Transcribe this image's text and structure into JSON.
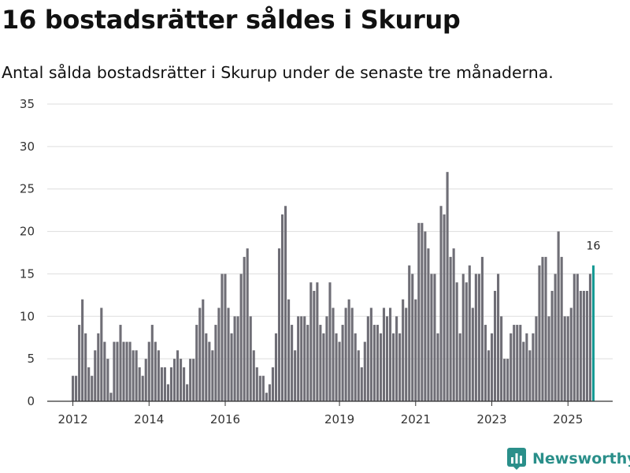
{
  "header": {
    "title": "16 bostadsrätter såldes i Skurup",
    "subtitle": "Antal sålda bostadsrätter i Skurup under de senaste tre månaderna."
  },
  "logo": {
    "text": "Newsworthy",
    "icon": "bar-chart-icon"
  },
  "colors": {
    "bar": "#6f6e76",
    "highlight": "#179a94",
    "grid": "#dddddd",
    "axis": "#333333"
  },
  "chart_data": {
    "type": "bar",
    "title": "16 bostadsrätter såldes i Skurup",
    "subtitle": "Antal sålda bostadsrätter i Skurup under de senaste tre månaderna.",
    "xlabel": "",
    "ylabel": "",
    "ylim": [
      0,
      35
    ],
    "yticks": [
      0,
      5,
      10,
      15,
      20,
      25,
      30,
      35
    ],
    "grid": true,
    "x_start": "2012-01",
    "x_tick_labels": [
      {
        "label": "2012",
        "month_index": 0
      },
      {
        "label": "2014",
        "month_index": 24
      },
      {
        "label": "2016",
        "month_index": 48
      },
      {
        "label": "2019",
        "month_index": 84
      },
      {
        "label": "2021",
        "month_index": 108
      },
      {
        "label": "2023",
        "month_index": 132
      },
      {
        "label": "2025",
        "month_index": 156
      }
    ],
    "values": [
      3,
      3,
      9,
      12,
      8,
      4,
      3,
      6,
      8,
      11,
      7,
      5,
      1,
      7,
      7,
      9,
      7,
      7,
      7,
      6,
      6,
      4,
      3,
      5,
      7,
      9,
      7,
      6,
      4,
      4,
      2,
      4,
      5,
      6,
      5,
      4,
      2,
      5,
      5,
      9,
      11,
      12,
      8,
      7,
      6,
      9,
      11,
      15,
      15,
      11,
      8,
      10,
      10,
      15,
      17,
      18,
      10,
      6,
      4,
      3,
      3,
      1,
      2,
      4,
      8,
      18,
      22,
      23,
      12,
      9,
      6,
      10,
      10,
      10,
      9,
      14,
      13,
      14,
      9,
      8,
      10,
      14,
      11,
      8,
      7,
      9,
      11,
      12,
      11,
      8,
      6,
      4,
      7,
      10,
      11,
      9,
      9,
      8,
      11,
      10,
      11,
      8,
      10,
      8,
      12,
      11,
      16,
      15,
      12,
      21,
      21,
      20,
      18,
      15,
      15,
      8,
      23,
      22,
      27,
      17,
      18,
      14,
      8,
      15,
      14,
      16,
      11,
      15,
      15,
      17,
      9,
      6,
      8,
      13,
      15,
      10,
      5,
      5,
      8,
      9,
      9,
      9,
      7,
      8,
      6,
      8,
      10,
      16,
      17,
      17,
      10,
      13,
      15,
      20,
      17,
      10,
      10,
      11,
      15,
      15,
      13,
      13,
      13,
      15,
      16
    ],
    "highlight_last": true,
    "annotation": "16"
  }
}
